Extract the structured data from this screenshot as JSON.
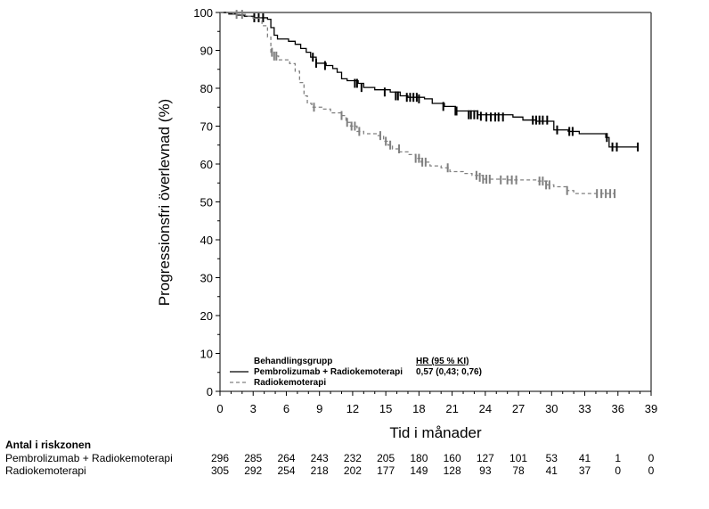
{
  "chart_data": {
    "type": "line",
    "subtype": "kaplan-meier",
    "title": "",
    "xlabel": "Tid i månader",
    "ylabel": "Progressionsfri överlevnad (%)",
    "xlim": [
      0,
      39
    ],
    "ylim": [
      0,
      100
    ],
    "x_ticks": [
      "0",
      "3",
      "6",
      "9",
      "12",
      "15",
      "18",
      "21",
      "24",
      "27",
      "30",
      "33",
      "36",
      "39"
    ],
    "y_ticks": [
      "0",
      "10",
      "20",
      "30",
      "40",
      "50",
      "60",
      "70",
      "80",
      "90",
      "100"
    ],
    "grid": false,
    "legend": {
      "placement": "bottom-left",
      "title": "Behandlingsgrupp",
      "hr_header": "HR (95 % KI)",
      "hr_value": "0,57 (0,43; 0,76)",
      "entries": [
        {
          "label": "Pembrolizumab + Radiokemoterapi",
          "style": "solid",
          "color": "#000000"
        },
        {
          "label": "Radiokemoterapi",
          "style": "dashed",
          "color": "#808080"
        }
      ]
    },
    "series": [
      {
        "name": "Pembrolizumab + Radiokemoterapi",
        "color": "#000000",
        "style": "solid",
        "x": [
          0,
          0.8,
          1.5,
          2.2,
          3,
          4.3,
          4.6,
          4.9,
          5.2,
          6.2,
          6.8,
          7.3,
          7.8,
          8.2,
          8.7,
          9.6,
          10.2,
          10.6,
          11.0,
          11.5,
          12.5,
          13.0,
          14.0,
          15.4,
          16.3,
          17.0,
          18.5,
          19.2,
          20.3,
          21.3,
          23.3,
          26.5,
          27.4,
          28.6,
          30.2,
          31.5,
          32.5,
          34.9,
          35.2,
          37.8
        ],
        "y": [
          100,
          99.6,
          99.3,
          99,
          98.6,
          98.2,
          96,
          94,
          93,
          92.4,
          91.6,
          90.5,
          89.5,
          88.2,
          86.6,
          86,
          85.2,
          84.2,
          82.5,
          82,
          81.3,
          80.2,
          79.6,
          79,
          78,
          77.6,
          77.2,
          76,
          75.2,
          74,
          73,
          72.4,
          71.6,
          71.3,
          69,
          68.6,
          68,
          67,
          64.5,
          64.5
        ],
        "censor_x": [
          3.1,
          3.5,
          3.9,
          8.4,
          8.7,
          9.5,
          12.2,
          12.4,
          12.8,
          14.9,
          15.9,
          16.1,
          16.9,
          17.2,
          17.5,
          17.8,
          18.0,
          20.2,
          21.3,
          21.4,
          22.5,
          22.7,
          23.0,
          23.3,
          23.6,
          24.1,
          24.5,
          24.9,
          25.2,
          25.6,
          28.3,
          28.6,
          28.9,
          29.2,
          29.6,
          30.5,
          31.6,
          31.9,
          35.0,
          35.5,
          35.9,
          37.8
        ],
        "censor_y": [
          98.6,
          98.6,
          98.6,
          88.2,
          86.6,
          86,
          81.3,
          81.3,
          80.2,
          79,
          78,
          78,
          77.6,
          77.6,
          77.6,
          77.6,
          77.2,
          75.2,
          74,
          74,
          73,
          73,
          73,
          73,
          72.6,
          72.4,
          72.4,
          72.4,
          72.4,
          72.4,
          71.6,
          71.6,
          71.6,
          71.6,
          71.6,
          69,
          68.6,
          68.6,
          67,
          64.5,
          64.5,
          64.5
        ]
      },
      {
        "name": "Radiokemoterapi",
        "color": "#808080",
        "style": "dashed",
        "x": [
          0,
          1.2,
          2.3,
          3.0,
          3.8,
          4.3,
          4.6,
          4.9,
          5.3,
          6.3,
          6.8,
          7.2,
          7.6,
          7.9,
          8.3,
          9.2,
          10.0,
          11.0,
          11.4,
          11.8,
          12.4,
          13.0,
          14.2,
          14.8,
          15.2,
          15.6,
          16.2,
          17.0,
          17.7,
          18.2,
          19.0,
          20.0,
          20.8,
          22.0,
          22.8,
          23.8,
          26.0,
          28.8,
          29.6,
          30.2,
          31.4,
          32.0,
          35.7
        ],
        "y": [
          100,
          99.5,
          99,
          98.5,
          96.5,
          93.5,
          89.5,
          88.5,
          87.5,
          86.5,
          84.5,
          81.5,
          78,
          76,
          75,
          74.5,
          73.5,
          72.8,
          71,
          70,
          68.6,
          68,
          67.5,
          66,
          65,
          64,
          63.2,
          62.5,
          61.5,
          60.5,
          59.5,
          59,
          58,
          57.5,
          57,
          56,
          55.8,
          55.5,
          54.5,
          54,
          53,
          52.2,
          52.2
        ],
        "censor_x": [
          1.5,
          2.0,
          4.7,
          4.9,
          5.1,
          8.5,
          11.0,
          11.5,
          11.9,
          12.2,
          12.6,
          14.5,
          15.0,
          15.4,
          16.2,
          17.7,
          18.0,
          18.3,
          18.6,
          20.6,
          23.2,
          23.5,
          23.8,
          24.1,
          24.4,
          25.4,
          26.0,
          26.4,
          26.8,
          28.9,
          29.2,
          29.5,
          29.8,
          31.4,
          34.1,
          34.5,
          34.9,
          35.3,
          35.7
        ],
        "censor_y": [
          99.5,
          99.5,
          89.5,
          88.5,
          88.5,
          75,
          72.8,
          71,
          70,
          70,
          68.6,
          67.5,
          66,
          65,
          64,
          61.5,
          61.5,
          60.5,
          60.5,
          59,
          57,
          56.5,
          56,
          56,
          56,
          55.8,
          55.8,
          55.8,
          55.8,
          55.5,
          55.5,
          54.5,
          54.5,
          53,
          52.2,
          52.2,
          52.2,
          52.2,
          52.2
        ]
      }
    ],
    "risk_table": {
      "title": "Antal i riskzonen",
      "times": [
        0,
        3,
        6,
        9,
        12,
        15,
        18,
        21,
        24,
        27,
        30,
        33,
        36,
        39
      ],
      "rows": [
        {
          "label": "Pembrolizumab + Radiokemoterapi",
          "values": [
            "296",
            "285",
            "264",
            "243",
            "232",
            "205",
            "180",
            "160",
            "127",
            "101",
            "53",
            "41",
            "1",
            "0"
          ]
        },
        {
          "label": "Radiokemoterapi",
          "values": [
            "305",
            "292",
            "254",
            "218",
            "202",
            "177",
            "149",
            "128",
            "93",
            "78",
            "41",
            "37",
            "0",
            "0"
          ]
        }
      ]
    }
  }
}
